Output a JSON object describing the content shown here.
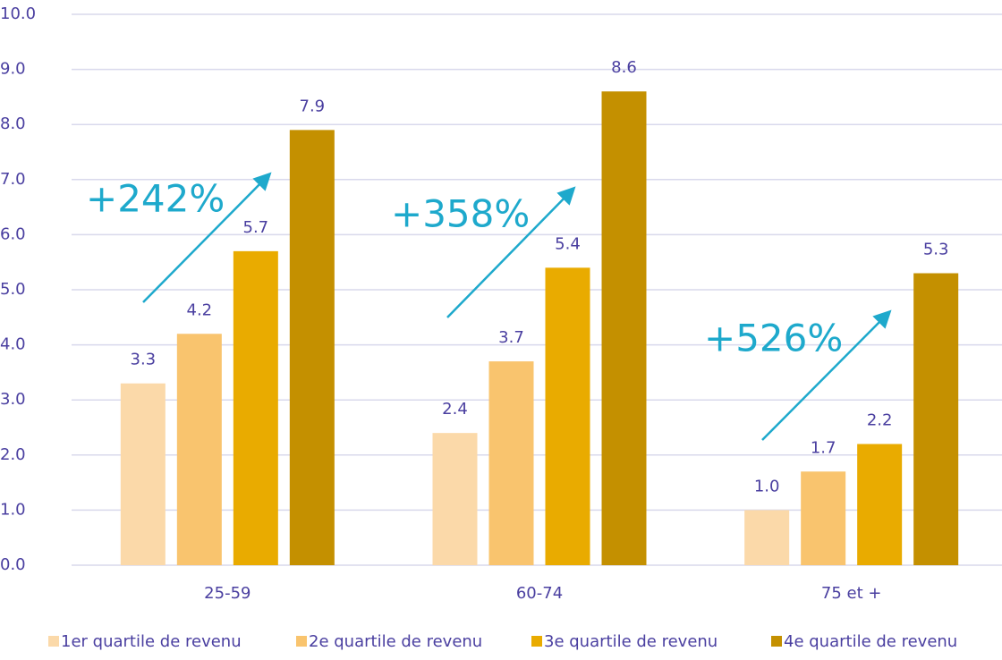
{
  "chart_data": {
    "type": "bar",
    "categories": [
      "25-59",
      "60-74",
      "75 et +"
    ],
    "series": [
      {
        "name": "1er quartile de revenu",
        "color": "#fbd9a9",
        "values": [
          3.3,
          2.4,
          1.0
        ],
        "value_labels": [
          "3.3",
          "2.4",
          "1.0"
        ]
      },
      {
        "name": "2e quartile de revenu",
        "color": "#f9c46e",
        "values": [
          4.2,
          3.7,
          1.7
        ],
        "value_labels": [
          "4.2",
          "3.7",
          "1.7"
        ]
      },
      {
        "name": "3e quartile de revenu",
        "color": "#e9ab00",
        "values": [
          5.7,
          5.4,
          2.2
        ],
        "value_labels": [
          "5.7",
          "5.4",
          "2.2"
        ]
      },
      {
        "name": "4e quartile de revenu",
        "color": "#c49000",
        "values": [
          7.9,
          8.6,
          5.3
        ],
        "value_labels": [
          "7.9",
          "8.6",
          "5.3"
        ]
      }
    ],
    "annotations": [
      "+242%",
      "+358%",
      "+526%"
    ],
    "ylim": [
      0,
      10
    ],
    "yticks": [
      {
        "value": 0,
        "label": "0.0"
      },
      {
        "value": 1,
        "label": "1.0"
      },
      {
        "value": 2,
        "label": "2.0"
      },
      {
        "value": 3,
        "label": "3.0"
      },
      {
        "value": 4,
        "label": "4.0"
      },
      {
        "value": 5,
        "label": "5.0"
      },
      {
        "value": 6,
        "label": "6.0"
      },
      {
        "value": 7,
        "label": "7.0"
      },
      {
        "value": 8,
        "label": "8.0"
      },
      {
        "value": 9,
        "label": "9.0"
      },
      {
        "value": 10,
        "label": "10.0"
      }
    ],
    "grid": true,
    "legend": "bottom"
  }
}
